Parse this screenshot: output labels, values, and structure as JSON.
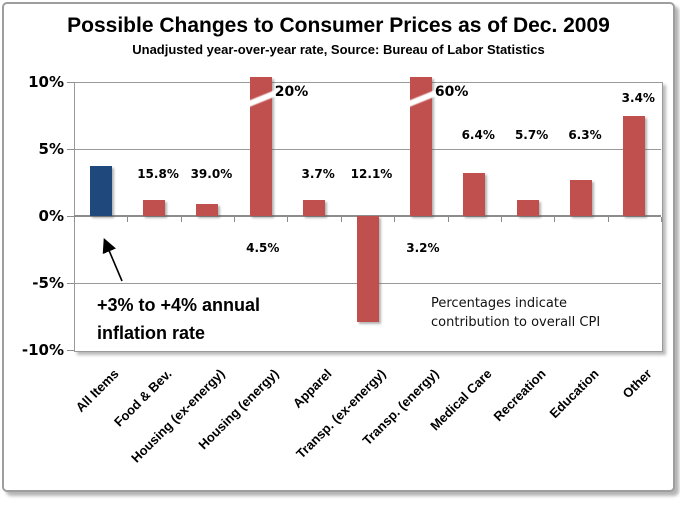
{
  "chart": {
    "title": "Possible Changes to Consumer Prices as of Dec. 2009",
    "subtitle": "Unadjusted year-over-year rate, Source: Bureau of Labor Statistics",
    "annotations": {
      "inflation_note": "+3% to +4% annual\ninflation rate",
      "cpi_note": "Percentages indicate\ncontribution to overall CPI"
    }
  },
  "chart_data": {
    "type": "bar",
    "title": "Possible Changes to Consumer Prices as of Dec. 2009",
    "subtitle": "Unadjusted year-over-year rate, Source: Bureau of Labor Statistics",
    "ylim": [
      -10,
      10
    ],
    "ytick_labels": [
      "10%",
      "5%",
      "0%",
      "-5%",
      "-10%"
    ],
    "grid": true,
    "legend": "none",
    "categories": [
      "All Items",
      "Food & Bev.",
      "Housing (ex-energy)",
      "Housing (energy)",
      "Apparel",
      "Transp. (ex-energy)",
      "Transp. (energy)",
      "Medical Care",
      "Recreation",
      "Education",
      "Other"
    ],
    "series": [
      {
        "name": "Unadjusted year-over-year rate (%)",
        "values": [
          3.7,
          1.2,
          0.9,
          20,
          1.2,
          -7.9,
          60,
          3.2,
          1.2,
          2.7,
          7.5
        ]
      }
    ],
    "clipped_bar_top_labels": [
      "",
      "",
      "",
      "20%",
      "",
      "",
      "60%",
      "",
      "",
      "",
      ""
    ],
    "axis_break_indices": [
      3,
      6
    ],
    "contribution_labels": [
      "",
      "15.8%",
      "39.0%",
      "4.5%",
      "3.7%",
      "12.1%",
      "3.2%",
      "6.4%",
      "5.7%",
      "6.3%",
      "3.4%"
    ],
    "bar_colors": {
      "all_items": "#1F497D",
      "default": "#C0504D"
    },
    "annotations": [
      "+3% to +4% annual inflation rate",
      "Percentages indicate contribution to overall CPI"
    ]
  }
}
